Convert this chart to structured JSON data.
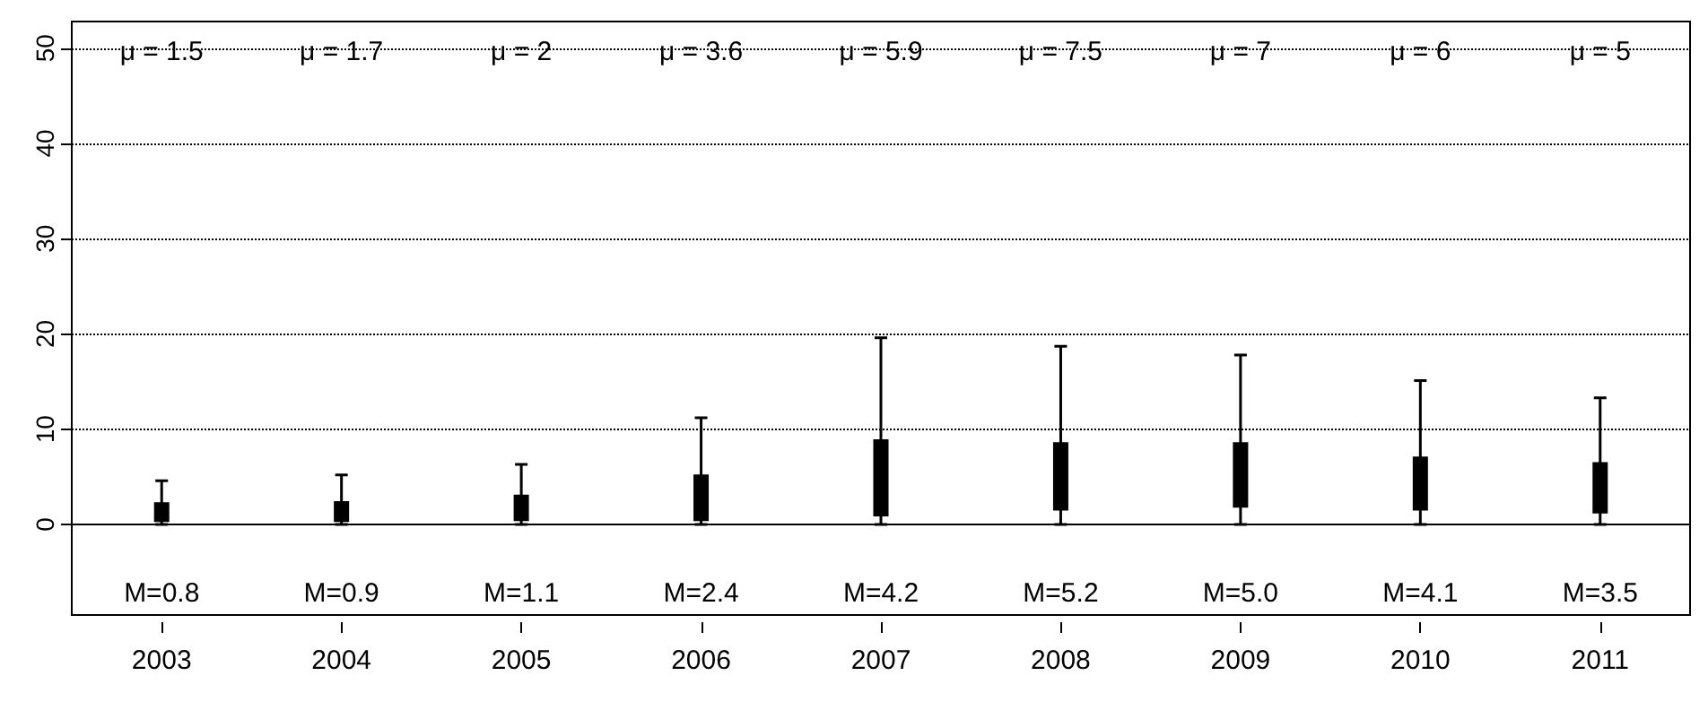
{
  "chart_data": {
    "type": "box",
    "categories": [
      "2003",
      "2004",
      "2005",
      "2006",
      "2007",
      "2008",
      "2009",
      "2010",
      "2011"
    ],
    "boxes": [
      {
        "low": 0,
        "q1": 0.4,
        "median": 0.8,
        "q3": 2.2,
        "high": 4.6
      },
      {
        "low": 0,
        "q1": 0.4,
        "median": 0.9,
        "q3": 2.3,
        "high": 5.2
      },
      {
        "low": 0,
        "q1": 0.5,
        "median": 1.1,
        "q3": 3.0,
        "high": 6.3
      },
      {
        "low": 0,
        "q1": 0.5,
        "median": 2.4,
        "q3": 5.1,
        "high": 11.2
      },
      {
        "low": 0,
        "q1": 1.0,
        "median": 4.2,
        "q3": 8.8,
        "high": 19.6
      },
      {
        "low": 0,
        "q1": 1.6,
        "median": 5.2,
        "q3": 8.5,
        "high": 18.7
      },
      {
        "low": 0,
        "q1": 1.9,
        "median": 5.0,
        "q3": 8.5,
        "high": 17.8
      },
      {
        "low": 0,
        "q1": 1.6,
        "median": 4.1,
        "q3": 7.0,
        "high": 15.1
      },
      {
        "low": 0,
        "q1": 1.3,
        "median": 3.5,
        "q3": 6.4,
        "high": 13.3
      }
    ],
    "value_labels": [
      "M=0.8",
      "M=0.9",
      "M=1.1",
      "M=2.4",
      "M=4.2",
      "M=5.2",
      "M=5.0",
      "M=4.1",
      "M=3.5"
    ],
    "annotations": [
      "μ = 1.5",
      "μ = 1.7",
      "μ = 2",
      "μ = 3.6",
      "μ = 5.9",
      "μ = 7.5",
      "μ = 7",
      "μ = 6",
      "μ = 5"
    ],
    "color": "#000000",
    "ylim": [
      -9.5,
      52.8
    ],
    "yticks": [
      0,
      10,
      20,
      30,
      40,
      50
    ],
    "grid": "y",
    "line_style": "dotted",
    "ref_lines": [
      {
        "axis": "y",
        "value": 0,
        "color": "#000000"
      }
    ]
  }
}
